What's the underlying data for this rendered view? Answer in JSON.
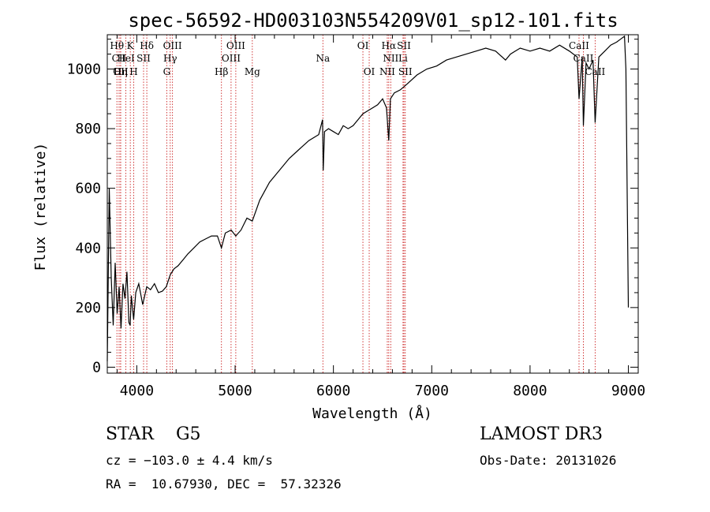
{
  "chart_data": {
    "type": "line",
    "title": "spec-56592-HD003103N554209V01_sp12-101.fits",
    "xlabel": "Wavelength (Å)",
    "ylabel": "Flux (relative)",
    "xlim": [
      3700,
      9100
    ],
    "ylim": [
      -20,
      1115
    ],
    "xticks": [
      4000,
      5000,
      6000,
      7000,
      8000,
      9000
    ],
    "yticks": [
      0,
      200,
      400,
      600,
      800,
      1000
    ],
    "grid": false,
    "series": [
      {
        "name": "flux",
        "color": "#000000",
        "x": [
          3700,
          3720,
          3740,
          3760,
          3780,
          3800,
          3820,
          3840,
          3860,
          3880,
          3900,
          3920,
          3933,
          3945,
          3968,
          3990,
          4020,
          4060,
          4101,
          4140,
          4180,
          4220,
          4260,
          4300,
          4340,
          4380,
          4420,
          4470,
          4520,
          4580,
          4640,
          4700,
          4760,
          4820,
          4861,
          4900,
          4960,
          5007,
          5060,
          5120,
          5175,
          5250,
          5350,
          5450,
          5550,
          5650,
          5750,
          5850,
          5890,
          5896,
          5910,
          5950,
          6000,
          6050,
          6100,
          6150,
          6200,
          6250,
          6300,
          6350,
          6400,
          6450,
          6500,
          6540,
          6563,
          6580,
          6620,
          6680,
          6750,
          6850,
          6950,
          7050,
          7150,
          7250,
          7350,
          7450,
          7550,
          7650,
          7750,
          7800,
          7850,
          7900,
          8000,
          8100,
          8200,
          8300,
          8400,
          8480,
          8498,
          8530,
          8542,
          8570,
          8600,
          8640,
          8662,
          8700,
          8760,
          8820,
          8880,
          8920,
          8960,
          8975,
          9000
        ],
        "y": [
          20,
          600,
          300,
          140,
          350,
          180,
          270,
          130,
          280,
          230,
          320,
          150,
          140,
          240,
          160,
          250,
          280,
          210,
          270,
          260,
          280,
          250,
          255,
          270,
          310,
          330,
          340,
          360,
          380,
          400,
          420,
          430,
          440,
          440,
          400,
          450,
          460,
          440,
          460,
          500,
          490,
          560,
          620,
          660,
          700,
          730,
          760,
          780,
          830,
          660,
          790,
          800,
          790,
          780,
          810,
          800,
          810,
          830,
          850,
          860,
          870,
          880,
          900,
          870,
          760,
          900,
          920,
          930,
          950,
          980,
          1000,
          1010,
          1030,
          1040,
          1050,
          1060,
          1070,
          1060,
          1030,
          1050,
          1060,
          1070,
          1060,
          1070,
          1060,
          1080,
          1060,
          1040,
          900,
          1040,
          810,
          1020,
          1000,
          1030,
          820,
          1040,
          1060,
          1080,
          1090,
          1100,
          1110,
          1000,
          200
        ]
      }
    ],
    "lines": [
      {
        "label": "Hθ",
        "x": 3798,
        "row": 1
      },
      {
        "label": "CII",
        "x": 3820,
        "row": 2
      },
      {
        "label": "OII",
        "x": 3836,
        "row": 3
      },
      {
        "label": "Hη",
        "x": 3835,
        "row": 3
      },
      {
        "label": "HeI",
        "x": 3889,
        "row": 2
      },
      {
        "label": "K",
        "x": 3934,
        "row": 1
      },
      {
        "label": "H",
        "x": 3969,
        "row": 3
      },
      {
        "label": "SII",
        "x": 4069,
        "row": 2
      },
      {
        "label": "Hδ",
        "x": 4102,
        "row": 1
      },
      {
        "label": "OIII",
        "x": 4363,
        "row": 1
      },
      {
        "label": "Hγ",
        "x": 4340,
        "row": 2
      },
      {
        "label": "G",
        "x": 4305,
        "row": 3
      },
      {
        "label": "Hβ",
        "x": 4861,
        "row": 3
      },
      {
        "label": "OIII",
        "x": 4959,
        "row": 2
      },
      {
        "label": "OIII",
        "x": 5007,
        "row": 1
      },
      {
        "label": "Mg",
        "x": 5175,
        "row": 3
      },
      {
        "label": "Na",
        "x": 5893,
        "row": 2
      },
      {
        "label": "OI",
        "x": 6300,
        "row": 1
      },
      {
        "label": "OI",
        "x": 6364,
        "row": 3
      },
      {
        "label": "NII",
        "x": 6548,
        "row": 3
      },
      {
        "label": "Hα",
        "x": 6563,
        "row": 1
      },
      {
        "label": "NII",
        "x": 6583,
        "row": 2
      },
      {
        "label": "SII",
        "x": 6717,
        "row": 1
      },
      {
        "label": "SII",
        "x": 6731,
        "row": 3
      },
      {
        "label": "Li",
        "x": 6708,
        "row": 2
      },
      {
        "label": "CaII",
        "x": 8498,
        "row": 1
      },
      {
        "label": "CaII",
        "x": 8542,
        "row": 2
      },
      {
        "label": "CaII",
        "x": 8662,
        "row": 3
      }
    ]
  },
  "info": {
    "class": "STAR    G5",
    "survey": "LAMOST DR3",
    "cz": "cz = −103.0 ± 4.4 km/s",
    "obs_date": "Obs-Date: 20131026",
    "coords": "RA =  10.67930, DEC =  57.32326"
  }
}
